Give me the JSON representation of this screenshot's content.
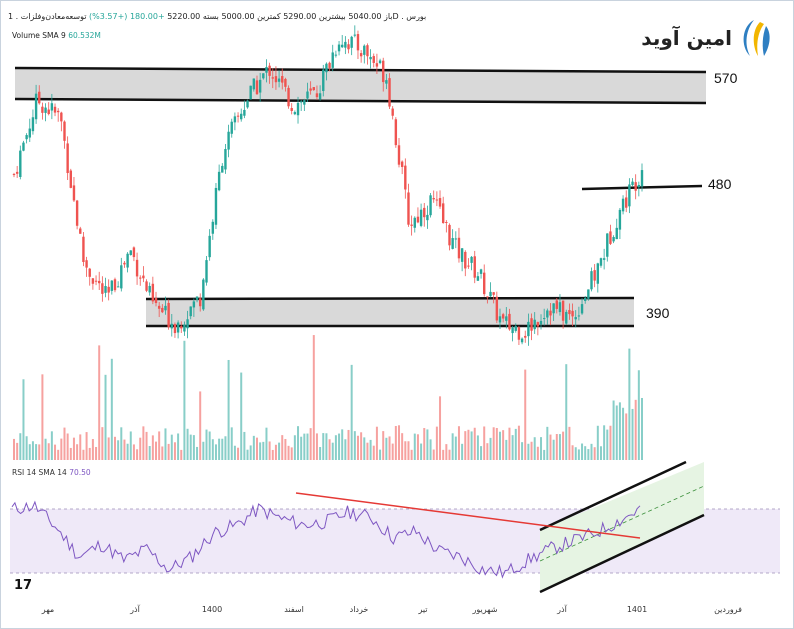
{
  "header": {
    "symbol_line": "توسعه‌معادن‌وفلزات . 1D . بورس",
    "open_label": "باز",
    "open_value": "5040.00",
    "high_label": "بیشترین",
    "high_value": "5290.00",
    "low_label": "کمترین",
    "low_value": "5000.00",
    "close_label": "بسته",
    "close_value": "5220.00",
    "change_value": "+180.00 (+3.57%)"
  },
  "volume_legend": {
    "label": "Volume SMA 9",
    "value": "60.532M"
  },
  "rsi_legend": {
    "label": "RSI 14 SMA 14",
    "value": "70.50"
  },
  "logo": {
    "text": "امین آوید"
  },
  "watermark": {
    "text": "17"
  },
  "colors": {
    "up": "#26a69a",
    "down": "#ef5350",
    "zone_fill": "#d9d9d9",
    "rsi_line": "#7e57c2",
    "rsi_band": "#efe9f8",
    "channel_fill": "#e6f4e3",
    "trend_red": "#e53935"
  },
  "chart_data": {
    "type": "candlestick",
    "x_ticks": [
      "مهر",
      "آذر",
      "1400",
      "اسفند",
      "خرداد",
      "تیر",
      "شهریور",
      "آذر",
      "1401",
      "فروردین"
    ],
    "price_levels": [
      {
        "label": "570",
        "kind": "resistance-zone"
      },
      {
        "label": "480",
        "kind": "line"
      },
      {
        "label": "390",
        "kind": "support-zone"
      }
    ],
    "price_path": [
      500,
      560,
      545,
      430,
      400,
      440,
      395,
      380,
      402,
      520,
      560,
      585,
      555,
      565,
      610,
      600,
      580,
      460,
      480,
      440,
      420,
      380,
      375,
      395,
      385,
      420,
      470,
      505
    ],
    "rsi_path": [
      70,
      72,
      58,
      40,
      48,
      38,
      45,
      32,
      40,
      55,
      60,
      70,
      64,
      60,
      62,
      68,
      65,
      52,
      56,
      44,
      40,
      32,
      30,
      38,
      45,
      50,
      55,
      62,
      70
    ]
  }
}
